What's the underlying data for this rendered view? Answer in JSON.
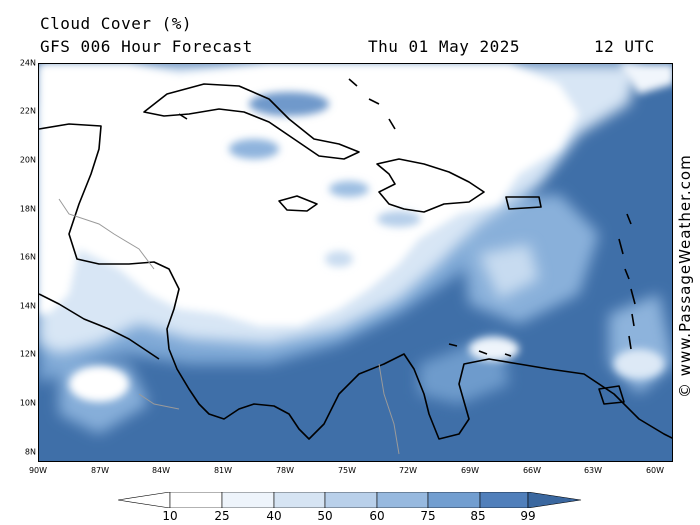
{
  "header": {
    "title": "Cloud Cover (%)",
    "subtitle": "GFS 006 Hour Forecast",
    "date": "Thu 01 May 2025",
    "time": "12 UTC"
  },
  "credit": "© www.PassageWeather.com",
  "axes": {
    "lat_labels": [
      "24N",
      "22N",
      "20N",
      "18N",
      "16N",
      "14N",
      "12N",
      "10N",
      "8N"
    ],
    "lon_labels": [
      "90W",
      "87W",
      "84W",
      "81W",
      "78W",
      "75W",
      "72W",
      "69W",
      "66W",
      "63W",
      "60W"
    ]
  },
  "legend": {
    "ticks": [
      "10",
      "25",
      "40",
      "50",
      "60",
      "75",
      "85",
      "99"
    ],
    "colors": [
      "#ffffff",
      "#eef4fb",
      "#d6e4f3",
      "#b9d0ea",
      "#97b9df",
      "#729ed0",
      "#507fbb",
      "#3a679f",
      "#2d5a92"
    ]
  },
  "colors": {
    "land_outline": "#000000",
    "border": "#9a9a9a",
    "dense_cloud": "#3f6fa8",
    "clear": "#ffffff"
  }
}
